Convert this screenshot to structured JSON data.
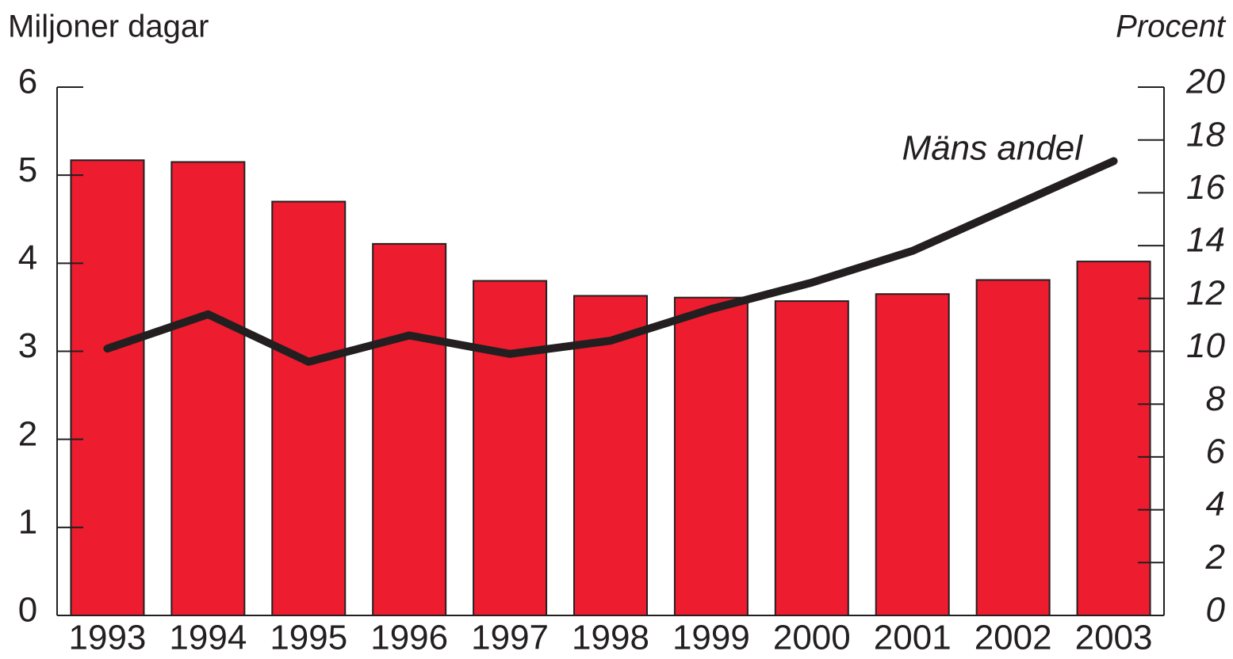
{
  "chart_data": {
    "type": "bar_line",
    "y_label": "Miljoner dagar",
    "y2_label": "Procent",
    "annotation": "Mäns andel",
    "categories": [
      "1993",
      "1994",
      "1995",
      "1996",
      "1997",
      "1998",
      "1999",
      "2000",
      "2001",
      "2002",
      "2003"
    ],
    "series": [
      {
        "name": null,
        "type": "bar",
        "color": "#ed1c2e",
        "values": [
          5.17,
          5.15,
          4.7,
          4.22,
          3.8,
          3.63,
          3.61,
          3.57,
          3.65,
          3.81,
          4.02
        ]
      },
      {
        "name": "Mäns andel",
        "type": "line",
        "axis": "y2",
        "color": "#231f20",
        "values": [
          10.1,
          11.4,
          9.6,
          10.6,
          9.9,
          10.4,
          11.6,
          12.6,
          13.8,
          15.5,
          17.2
        ]
      }
    ],
    "ylim": [
      0,
      6
    ],
    "yticks": [
      0,
      1,
      2,
      3,
      4,
      5,
      6
    ],
    "y2lim": [
      0,
      20
    ],
    "y2ticks": [
      0,
      2,
      4,
      6,
      8,
      10,
      12,
      14,
      16,
      18,
      20
    ]
  }
}
